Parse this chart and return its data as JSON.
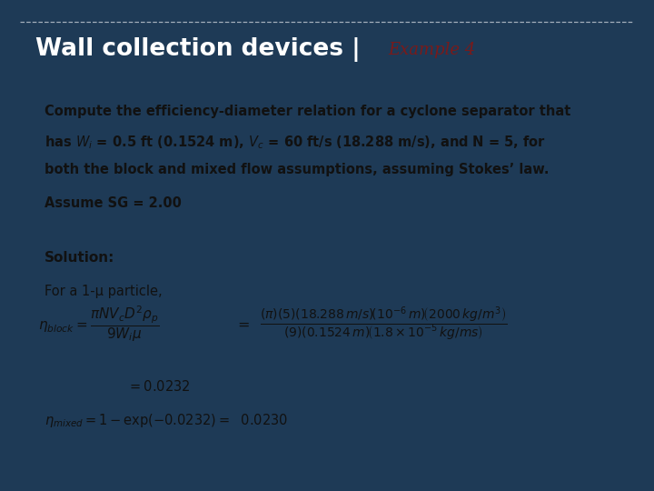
{
  "title_text": "Wall collection devices |",
  "title_example": "Example 4",
  "title_bg_color": "#5599cc",
  "title_text_color": "#ffffff",
  "title_example_color": "#7a1a1a",
  "outer_bg_color": "#1e3a56",
  "content_bg_color": "#f2f4f6",
  "paragraph1_line1": "Compute the efficiency-diameter relation for a cyclone separator that",
  "paragraph1_line2": "has $\\mathit{W_i}$ = 0.5 ft (0.1524 m), $\\mathit{V_c}$ = 60 ft/s (18.288 m/s), and N = 5, for",
  "paragraph1_line3": "both the block and mixed flow assumptions, assuming Stokes’ law.",
  "paragraph2": "Assume SG = 2.00",
  "solution_label": "Solution:",
  "for_particle": "For a 1-μ particle,",
  "fontsize_body": 10.5,
  "fontsize_title": 19,
  "fontsize_example": 13
}
